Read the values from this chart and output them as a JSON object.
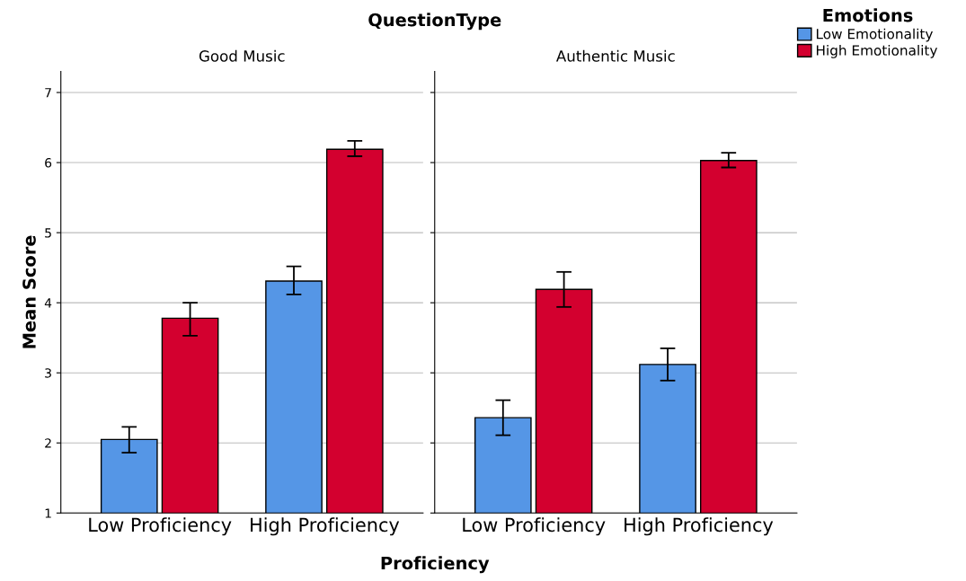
{
  "chart_data": [
    {
      "type": "bar",
      "title": "Good Music",
      "annotations": [
        "QuestionType"
      ],
      "xlabel": "Proficiency",
      "ylabel": "Mean Score",
      "legend_title": "Emotions",
      "legend": "right",
      "grid": "y",
      "ylim": [
        1,
        7.3
      ],
      "yticks": [
        1,
        2,
        3,
        4,
        5,
        6,
        7
      ],
      "categories": [
        "Low Proficiency",
        "High Proficiency"
      ],
      "series": [
        {
          "name": "Low Emotionality",
          "color": "#5596e6",
          "values": [
            2.05,
            4.31
          ],
          "errors": [
            [
              1.86,
              2.23
            ],
            [
              4.12,
              4.52
            ]
          ]
        },
        {
          "name": "High Emotionality",
          "color": "#d3002f",
          "values": [
            3.78,
            6.19
          ],
          "errors": [
            [
              3.53,
              4.0
            ],
            [
              6.09,
              6.31
            ]
          ]
        }
      ]
    },
    {
      "type": "bar",
      "title": "Authentic Music",
      "grid": "y",
      "ylim": [
        1,
        7.3
      ],
      "yticks": [
        1,
        2,
        3,
        4,
        5,
        6,
        7
      ],
      "tick_labels": "x",
      "categories": [
        "Low Proficiency",
        "High Proficiency"
      ],
      "series": [
        {
          "color": "#5596e6",
          "values": [
            2.36,
            3.12
          ],
          "errors": [
            [
              2.11,
              2.61
            ],
            [
              2.89,
              3.35
            ]
          ]
        },
        {
          "color": "#d3002f",
          "values": [
            4.19,
            6.03
          ],
          "errors": [
            [
              3.94,
              4.44
            ],
            [
              5.93,
              6.14
            ]
          ]
        }
      ]
    }
  ]
}
